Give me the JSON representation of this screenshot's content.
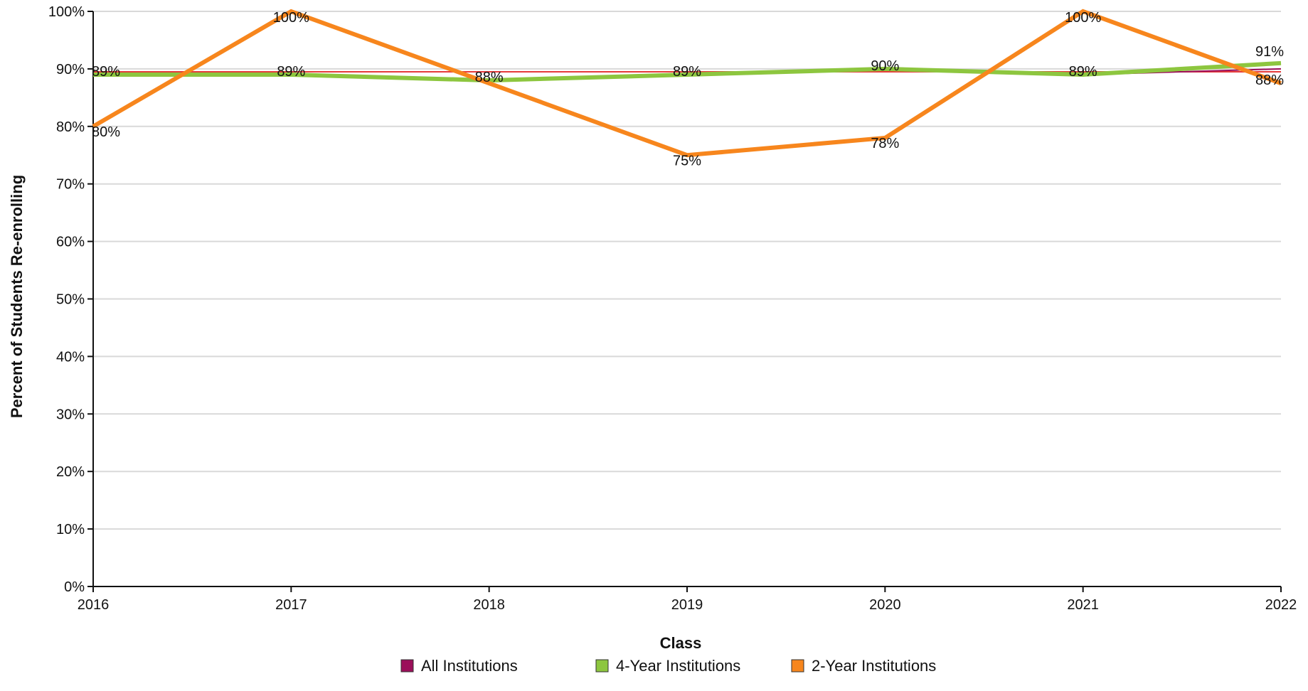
{
  "chart_data": {
    "type": "line",
    "title": "",
    "xlabel": "Class",
    "ylabel": "Percent of Students Re-enrolling",
    "x": [
      "2016",
      "2017",
      "2018",
      "2019",
      "2020",
      "2021",
      "2022"
    ],
    "ylim": [
      0,
      100
    ],
    "yticks": [
      "0%",
      "10%",
      "20%",
      "30%",
      "40%",
      "50%",
      "60%",
      "70%",
      "80%",
      "90%",
      "100%"
    ],
    "grid": true,
    "legend_position": "bottom",
    "series": [
      {
        "name": "All Institutions",
        "values": [
          89,
          89,
          88,
          89,
          90,
          89,
          90
        ],
        "color": "#9b0f5a",
        "labels": []
      },
      {
        "name": "4-Year Institutions",
        "values": [
          89,
          89,
          88,
          89,
          90,
          89,
          91
        ],
        "color": "#8dc63f",
        "labels": [
          "89%",
          "89%",
          "88%",
          "89%",
          "90%",
          "89%",
          "91%"
        ]
      },
      {
        "name": "2-Year Institutions",
        "values": [
          80,
          100,
          87.5,
          75,
          78,
          100,
          87.5
        ],
        "color": "#f7861d",
        "labels": [
          "80%",
          "100%",
          "",
          "75%",
          "78%",
          "100%",
          "88%"
        ]
      }
    ],
    "reference_line": {
      "value": 89.5,
      "color": "#e63a3a"
    }
  }
}
